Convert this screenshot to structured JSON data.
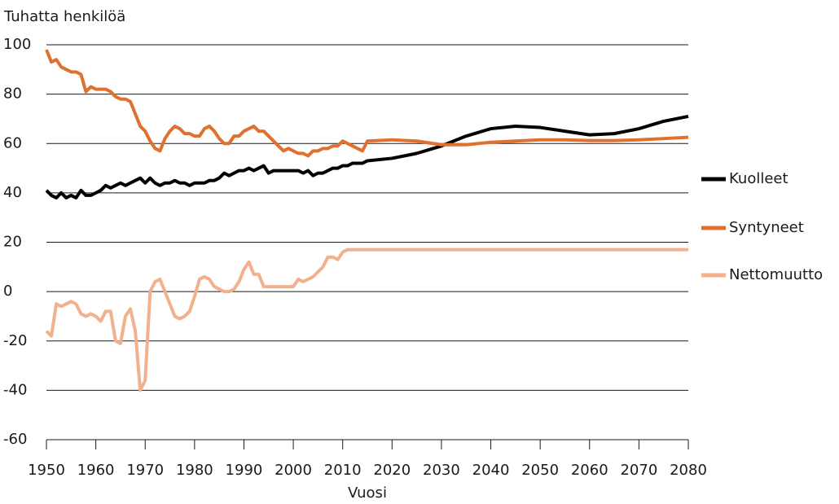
{
  "chart_data": {
    "type": "line",
    "title": "Tuhatta henkilöä",
    "x_label": "Vuosi",
    "x": [
      1950,
      1951,
      1952,
      1953,
      1954,
      1955,
      1956,
      1957,
      1958,
      1959,
      1960,
      1961,
      1962,
      1963,
      1964,
      1965,
      1966,
      1967,
      1968,
      1969,
      1970,
      1971,
      1972,
      1973,
      1974,
      1975,
      1976,
      1977,
      1978,
      1979,
      1980,
      1981,
      1982,
      1983,
      1984,
      1985,
      1986,
      1987,
      1988,
      1989,
      1990,
      1991,
      1992,
      1993,
      1994,
      1995,
      1996,
      1997,
      1998,
      1999,
      2000,
      2001,
      2002,
      2003,
      2004,
      2005,
      2006,
      2007,
      2008,
      2009,
      2010,
      2011,
      2012,
      2013,
      2014,
      2015,
      2020,
      2025,
      2030,
      2035,
      2040,
      2045,
      2050,
      2055,
      2060,
      2065,
      2070,
      2075,
      2080
    ],
    "series": [
      {
        "name": "Kuolleet",
        "color": "#000000",
        "values": [
          41,
          39,
          38,
          40,
          38,
          39,
          38,
          41,
          39,
          39,
          40,
          41,
          43,
          42,
          43,
          44,
          43,
          44,
          45,
          46,
          44,
          46,
          44,
          43,
          44,
          44,
          45,
          44,
          44,
          43,
          44,
          44,
          44,
          45,
          45,
          46,
          48,
          47,
          48,
          49,
          49,
          50,
          49,
          50,
          51,
          48,
          49,
          49,
          49,
          49,
          49,
          49,
          48,
          49,
          47,
          48,
          48,
          49,
          50,
          50,
          51,
          51,
          52,
          52,
          52,
          53,
          54,
          56,
          59,
          63,
          66,
          67,
          66.5,
          65,
          63.5,
          64,
          66,
          69,
          71
        ]
      },
      {
        "name": "Syntyneet",
        "color": "#e0702e",
        "values": [
          98,
          93,
          94,
          91,
          90,
          89,
          89,
          88,
          81,
          83,
          82,
          82,
          82,
          81,
          79,
          78,
          78,
          77,
          72,
          67,
          65,
          61,
          58,
          57,
          62,
          65,
          67,
          66,
          64,
          64,
          63,
          63,
          66,
          67,
          65,
          62,
          60,
          60,
          63,
          63,
          65,
          66,
          67,
          65,
          65,
          63,
          61,
          59,
          57,
          58,
          57,
          56,
          56,
          55,
          57,
          57,
          58,
          58,
          59,
          59,
          61,
          60,
          59,
          58,
          57,
          61,
          61.5,
          61,
          59.5,
          59.5,
          60.5,
          61,
          61.5,
          61.5,
          61.2,
          61.2,
          61.5,
          62,
          62.5
        ]
      },
      {
        "name": "Nettomuutto",
        "color": "#f2b08c",
        "values": [
          -16,
          -18,
          -5,
          -6,
          -5,
          -4,
          -5,
          -9,
          -10,
          -9,
          -10,
          -12,
          -8,
          -8,
          -20,
          -21,
          -10,
          -7,
          -16,
          -40,
          -36,
          0,
          4,
          5,
          0,
          -5,
          -10,
          -11,
          -10,
          -8,
          -2,
          5,
          6,
          5,
          2,
          1,
          0,
          0,
          1,
          4,
          9,
          12,
          7,
          7,
          2,
          2,
          2,
          2,
          2,
          2,
          2,
          5,
          4,
          5,
          6,
          8,
          10,
          14,
          14,
          13,
          16,
          17,
          17,
          17,
          17,
          17,
          17,
          17,
          17,
          17,
          17,
          17,
          17,
          17,
          17,
          17,
          17,
          17,
          17
        ]
      }
    ],
    "xlim": [
      1950,
      2080
    ],
    "xticks": [
      1950,
      1960,
      1970,
      1980,
      1990,
      2000,
      2010,
      2020,
      2030,
      2040,
      2050,
      2060,
      2070,
      2080
    ],
    "ylim": [
      -60,
      100
    ],
    "yticks": [
      -60,
      -40,
      -20,
      0,
      20,
      40,
      60,
      80,
      100
    ],
    "grid": true,
    "legend": "right"
  }
}
